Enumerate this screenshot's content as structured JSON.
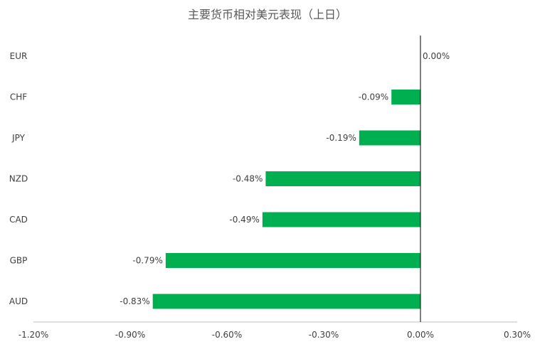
{
  "chart_data": {
    "type": "bar",
    "orientation": "horizontal",
    "title": "主要货币相对美元表现（上日）",
    "categories": [
      "EUR",
      "CHF",
      "JPY",
      "NZD",
      "CAD",
      "GBP",
      "AUD"
    ],
    "values": [
      0.0,
      -0.09,
      -0.19,
      -0.48,
      -0.49,
      -0.79,
      -0.83
    ],
    "value_labels": [
      "0.00%",
      "-0.09%",
      "-0.19%",
      "-0.48%",
      "-0.49%",
      "-0.79%",
      "-0.83%"
    ],
    "xlim": [
      -1.2,
      0.3
    ],
    "xticks": [
      -1.2,
      -0.9,
      -0.6,
      -0.3,
      0.0,
      0.3
    ],
    "xtick_labels": [
      "-1.20%",
      "-0.90%",
      "-0.60%",
      "-0.30%",
      "0.00%",
      "0.30%"
    ],
    "grid": false,
    "legend": "none",
    "bar_color": "#00b050"
  }
}
